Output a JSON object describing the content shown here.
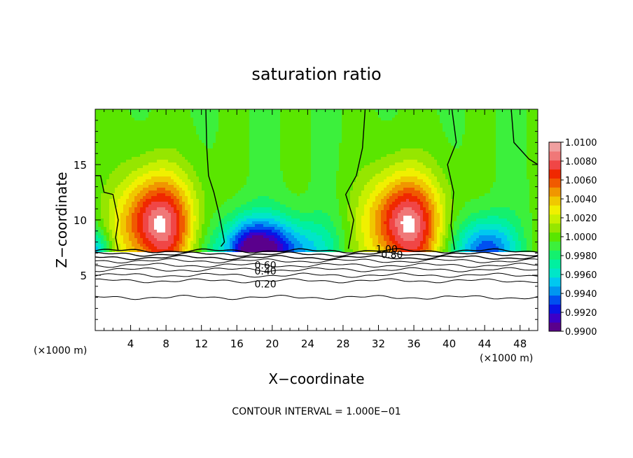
{
  "chart_data": {
    "type": "heatmap",
    "title": "saturation ratio",
    "xlabel": "X−coordinate",
    "ylabel": "Z−coordinate",
    "x_unit_left": "(×1000 m)",
    "x_unit_right": "(×1000 m)",
    "footer": "CONTOUR INTERVAL = 1.000E−01",
    "xlim": [
      0,
      50
    ],
    "ylim": [
      0,
      20
    ],
    "x_ticks": [
      4,
      8,
      12,
      16,
      20,
      24,
      28,
      32,
      36,
      40,
      44,
      48
    ],
    "x_tick_labels": [
      "4",
      "8",
      "12",
      "16",
      "20",
      "24",
      "28",
      "32",
      "36",
      "40",
      "44",
      "48"
    ],
    "y_ticks": [
      5,
      10,
      15
    ],
    "y_tick_labels": [
      "5",
      "10",
      "15"
    ],
    "colorbar": {
      "levels": [
        0.99,
        0.991,
        0.992,
        0.993,
        0.994,
        0.995,
        0.996,
        0.997,
        0.998,
        0.999,
        1.0,
        1.001,
        1.002,
        1.003,
        1.004,
        1.005,
        1.006,
        1.007,
        1.008,
        1.009,
        1.01
      ],
      "labels": [
        "0.9900",
        "0.9920",
        "0.9940",
        "0.9960",
        "0.9980",
        "1.0000",
        "1.0020",
        "1.0040",
        "1.0060",
        "1.0080",
        "1.0100"
      ],
      "colors": [
        "#5a008c",
        "#3c00c8",
        "#0a14e6",
        "#0050f0",
        "#0096f0",
        "#00c8f0",
        "#00e6c8",
        "#00f0a0",
        "#14f06e",
        "#3cf03c",
        "#5ae600",
        "#96e600",
        "#c8f000",
        "#f0f000",
        "#f0c800",
        "#f09600",
        "#f05a00",
        "#f02800",
        "#f04646",
        "#f07878",
        "#f0a0a0"
      ]
    },
    "contour_labels": [
      "1.00",
      "0.80",
      "0.60",
      "0.40",
      "0.20"
    ],
    "lower_contour_heights": [
      7.2,
      6.9,
      6.6,
      6.3,
      5.9,
      5.5,
      5.0,
      4.5,
      3.0
    ],
    "cloud_base_height": 7.1,
    "updrafts": [
      {
        "center_x": 7,
        "peak": 1.008
      },
      {
        "center_x": 35,
        "peak": 1.008
      }
    ]
  }
}
